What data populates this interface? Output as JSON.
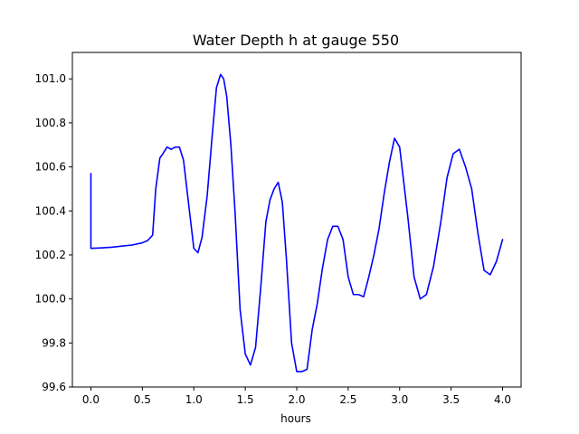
{
  "chart_data": {
    "type": "line",
    "title": "Water Depth h at gauge 550",
    "xlabel": "hours",
    "ylabel": "",
    "xlim": [
      -0.18,
      4.18
    ],
    "ylim": [
      99.6,
      101.12
    ],
    "xticks": [
      0.0,
      0.5,
      1.0,
      1.5,
      2.0,
      2.5,
      3.0,
      3.5,
      4.0
    ],
    "yticks": [
      99.6,
      99.8,
      100.0,
      100.2,
      100.4,
      100.6,
      100.8,
      101.0
    ],
    "xtick_labels": [
      "0.0",
      "0.5",
      "1.0",
      "1.5",
      "2.0",
      "2.5",
      "3.0",
      "3.5",
      "4.0"
    ],
    "ytick_labels": [
      "99.6",
      "99.8",
      "100.0",
      "100.2",
      "100.4",
      "100.6",
      "100.8",
      "101.0"
    ],
    "grid": false,
    "series": [
      {
        "color": "#0000ff",
        "x": [
          0.0,
          0.0,
          0.0,
          0.1,
          0.2,
          0.3,
          0.4,
          0.5,
          0.55,
          0.6,
          0.63,
          0.67,
          0.7,
          0.74,
          0.78,
          0.82,
          0.86,
          0.9,
          0.95,
          1.0,
          1.04,
          1.08,
          1.13,
          1.18,
          1.22,
          1.26,
          1.29,
          1.32,
          1.36,
          1.4,
          1.45,
          1.5,
          1.55,
          1.6,
          1.65,
          1.7,
          1.74,
          1.78,
          1.82,
          1.86,
          1.9,
          1.95,
          2.0,
          2.05,
          2.1,
          2.15,
          2.2,
          2.25,
          2.3,
          2.35,
          2.4,
          2.45,
          2.5,
          2.55,
          2.6,
          2.65,
          2.7,
          2.75,
          2.8,
          2.85,
          2.9,
          2.95,
          3.0,
          3.04,
          3.08,
          3.14,
          3.2,
          3.26,
          3.33,
          3.4,
          3.46,
          3.52,
          3.58,
          3.64,
          3.7,
          3.76,
          3.82,
          3.88,
          3.94,
          4.0
        ],
        "y": [
          100.57,
          100.23,
          100.23,
          100.232,
          100.235,
          100.24,
          100.245,
          100.255,
          100.265,
          100.29,
          100.5,
          100.64,
          100.66,
          100.69,
          100.68,
          100.69,
          100.69,
          100.63,
          100.43,
          100.23,
          100.21,
          100.28,
          100.47,
          100.75,
          100.96,
          101.02,
          101.0,
          100.92,
          100.7,
          100.4,
          99.95,
          99.75,
          99.7,
          99.78,
          100.05,
          100.35,
          100.45,
          100.5,
          100.53,
          100.44,
          100.18,
          99.8,
          99.67,
          99.67,
          99.68,
          99.86,
          99.98,
          100.14,
          100.27,
          100.33,
          100.33,
          100.27,
          100.1,
          100.02,
          100.02,
          100.01,
          100.1,
          100.2,
          100.32,
          100.48,
          100.62,
          100.73,
          100.69,
          100.53,
          100.37,
          100.1,
          100.0,
          100.02,
          100.15,
          100.35,
          100.55,
          100.66,
          100.68,
          100.6,
          100.5,
          100.3,
          100.13,
          100.11,
          100.17,
          100.27
        ]
      }
    ]
  }
}
